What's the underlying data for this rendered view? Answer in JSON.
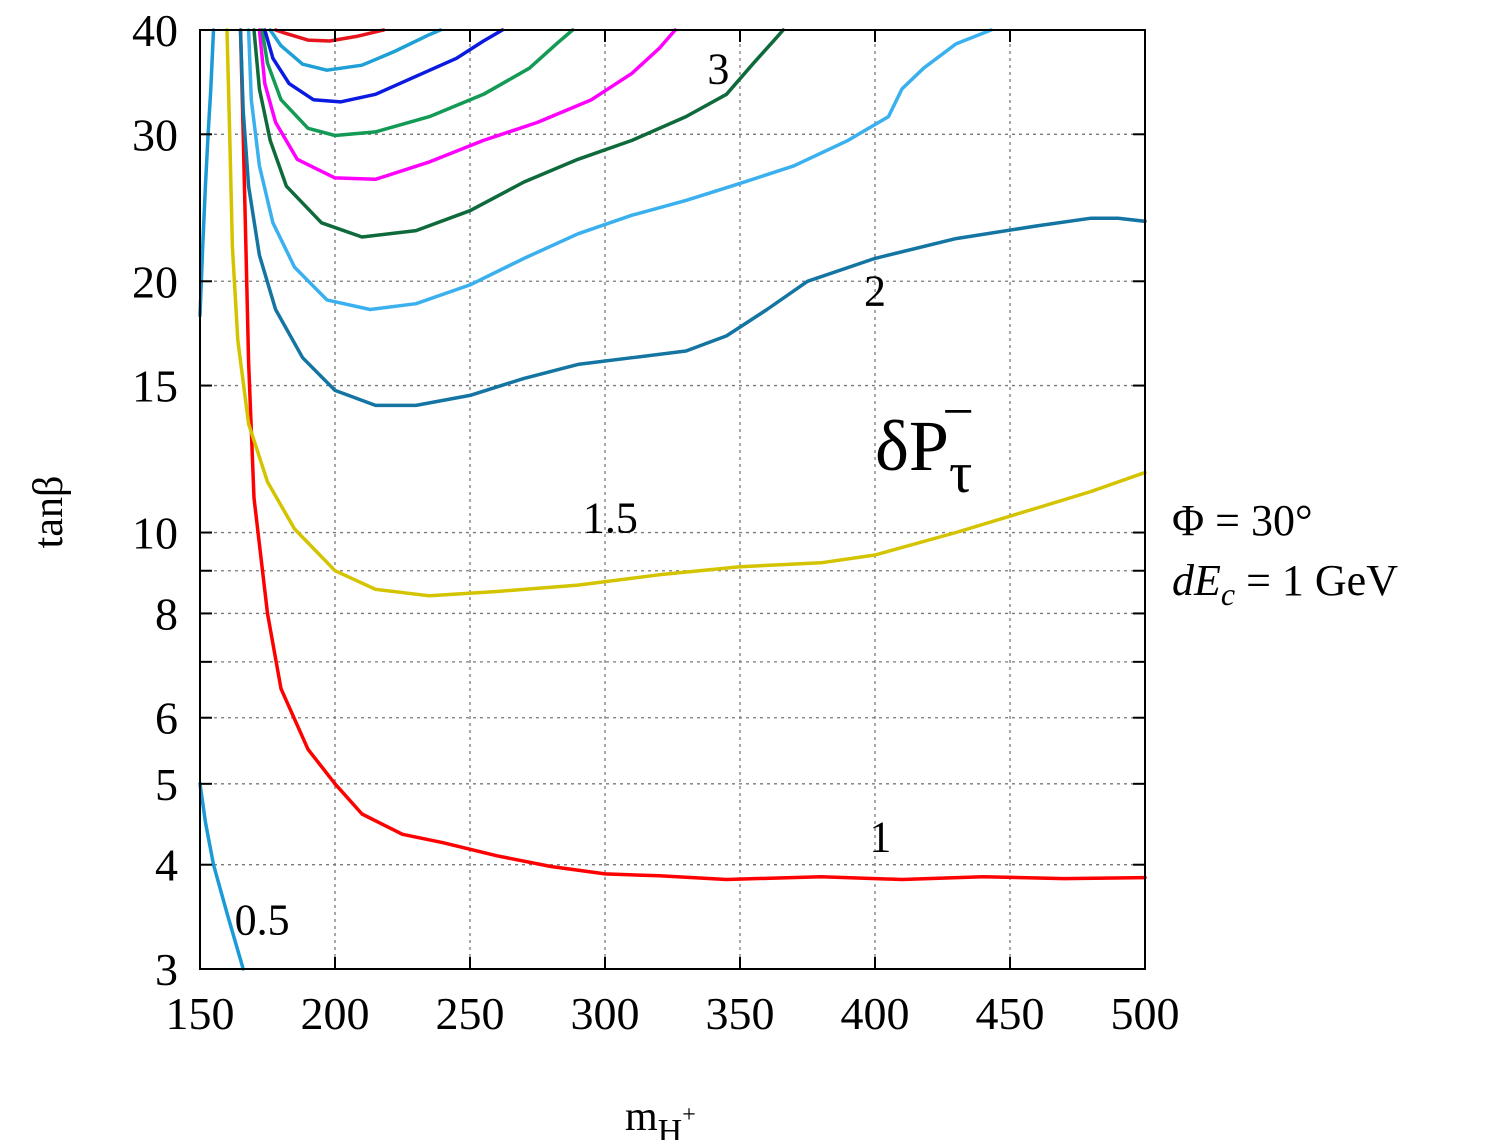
{
  "chart_data": {
    "type": "line",
    "title": "δP",
    "title_subscript": "τ",
    "title_superscript": "−",
    "xlabel": "m",
    "xlabel_subscript": "H",
    "xlabel_sup": "+",
    "ylabel": "tanβ",
    "xlim": [
      150,
      500
    ],
    "ylim": [
      3,
      40
    ],
    "yscale": "log",
    "grid": true,
    "x_ticks": [
      150,
      200,
      250,
      300,
      350,
      400,
      450,
      500
    ],
    "y_ticks": [
      3,
      4,
      5,
      6,
      8,
      10,
      15,
      20,
      30,
      40
    ],
    "y_grid_extra": [
      7,
      9
    ],
    "params": {
      "line1": "Φ = 30°",
      "line2_sym": "dE",
      "line2_sub": "c",
      "line2_rest": " = 1 GeV"
    },
    "contour_labels": [
      {
        "text": "0.5",
        "x": 173,
        "y": 3.3
      },
      {
        "text": "1",
        "x": 402,
        "y": 4.15
      },
      {
        "text": "1.5",
        "x": 302,
        "y": 10.0
      },
      {
        "text": "2",
        "x": 400,
        "y": 18.7
      },
      {
        "text": "3",
        "x": 342,
        "y": 34.5
      }
    ],
    "series": [
      {
        "color": "#1a9ad6",
        "points": [
          [
            150,
            5.0
          ],
          [
            152,
            4.5
          ],
          [
            155,
            4.0
          ],
          [
            160,
            3.5
          ],
          [
            166,
            3.0
          ]
        ]
      },
      {
        "color": "#1a9ad6",
        "points": [
          [
            150,
            18.2
          ],
          [
            151,
            22
          ],
          [
            152,
            26
          ],
          [
            153,
            30
          ],
          [
            154,
            34
          ],
          [
            155,
            40
          ]
        ]
      },
      {
        "color": "#ff0000",
        "points": [
          [
            165,
            40
          ],
          [
            166,
            30
          ],
          [
            167,
            22
          ],
          [
            168,
            16
          ],
          [
            170,
            11
          ],
          [
            175,
            8
          ],
          [
            180,
            6.5
          ],
          [
            190,
            5.5
          ],
          [
            200,
            5.0
          ],
          [
            210,
            4.6
          ],
          [
            225,
            4.35
          ],
          [
            240,
            4.25
          ],
          [
            260,
            4.1
          ],
          [
            280,
            3.98
          ],
          [
            300,
            3.9
          ],
          [
            320,
            3.88
          ],
          [
            345,
            3.84
          ],
          [
            380,
            3.87
          ],
          [
            410,
            3.84
          ],
          [
            440,
            3.87
          ],
          [
            470,
            3.85
          ],
          [
            500,
            3.86
          ]
        ]
      },
      {
        "color": "#d4c400",
        "points": [
          [
            160,
            40
          ],
          [
            161,
            30
          ],
          [
            162,
            22
          ],
          [
            164,
            17
          ],
          [
            168,
            13.5
          ],
          [
            175,
            11.5
          ],
          [
            185,
            10.1
          ],
          [
            200,
            9.0
          ],
          [
            215,
            8.55
          ],
          [
            235,
            8.4
          ],
          [
            260,
            8.5
          ],
          [
            290,
            8.65
          ],
          [
            320,
            8.9
          ],
          [
            350,
            9.1
          ],
          [
            380,
            9.2
          ],
          [
            400,
            9.4
          ],
          [
            430,
            10.0
          ],
          [
            460,
            10.7
          ],
          [
            480,
            11.2
          ],
          [
            500,
            11.8
          ]
        ]
      },
      {
        "color": "#1475a3",
        "points": [
          [
            165,
            40
          ],
          [
            166,
            32
          ],
          [
            168,
            26
          ],
          [
            172,
            21.5
          ],
          [
            178,
            18.5
          ],
          [
            188,
            16.2
          ],
          [
            200,
            14.8
          ],
          [
            215,
            14.2
          ],
          [
            230,
            14.2
          ],
          [
            250,
            14.6
          ],
          [
            270,
            15.3
          ],
          [
            290,
            15.9
          ],
          [
            310,
            16.2
          ],
          [
            330,
            16.5
          ],
          [
            345,
            17.2
          ],
          [
            360,
            18.5
          ],
          [
            375,
            20.0
          ],
          [
            400,
            21.3
          ],
          [
            430,
            22.5
          ],
          [
            460,
            23.3
          ],
          [
            480,
            23.8
          ],
          [
            490,
            23.8
          ],
          [
            500,
            23.6
          ]
        ]
      },
      {
        "color": "#3bb0ef",
        "points": [
          [
            168,
            40
          ],
          [
            169,
            33
          ],
          [
            172,
            27.5
          ],
          [
            177,
            23.5
          ],
          [
            185,
            20.8
          ],
          [
            197,
            19.0
          ],
          [
            213,
            18.5
          ],
          [
            230,
            18.8
          ],
          [
            250,
            19.8
          ],
          [
            270,
            21.3
          ],
          [
            290,
            22.8
          ],
          [
            310,
            24.0
          ],
          [
            330,
            25.0
          ],
          [
            350,
            26.2
          ],
          [
            370,
            27.5
          ],
          [
            390,
            29.5
          ],
          [
            405,
            31.5
          ],
          [
            410,
            34.0
          ],
          [
            418,
            36.0
          ],
          [
            430,
            38.5
          ],
          [
            443,
            40.0
          ]
        ]
      },
      {
        "color": "#0e6a3a",
        "points": [
          [
            170,
            40
          ],
          [
            172,
            34
          ],
          [
            176,
            29.5
          ],
          [
            182,
            26.0
          ],
          [
            195,
            23.5
          ],
          [
            210,
            22.6
          ],
          [
            230,
            23.0
          ],
          [
            250,
            24.3
          ],
          [
            270,
            26.3
          ],
          [
            290,
            28.0
          ],
          [
            310,
            29.5
          ],
          [
            330,
            31.5
          ],
          [
            345,
            33.5
          ],
          [
            355,
            36.5
          ],
          [
            363,
            39.0
          ],
          [
            366,
            40.0
          ]
        ]
      },
      {
        "color": "#ff00ff",
        "points": [
          [
            172,
            40
          ],
          [
            174,
            34.5
          ],
          [
            178,
            31.0
          ],
          [
            186,
            28.0
          ],
          [
            200,
            26.6
          ],
          [
            215,
            26.5
          ],
          [
            235,
            27.8
          ],
          [
            255,
            29.5
          ],
          [
            275,
            31.0
          ],
          [
            295,
            33.0
          ],
          [
            310,
            35.5
          ],
          [
            320,
            38.0
          ],
          [
            326,
            40.0
          ]
        ]
      },
      {
        "color": "#139a55",
        "points": [
          [
            173,
            40
          ],
          [
            175,
            36.5
          ],
          [
            180,
            33.0
          ],
          [
            190,
            30.5
          ],
          [
            200,
            29.9
          ],
          [
            215,
            30.2
          ],
          [
            235,
            31.5
          ],
          [
            255,
            33.5
          ],
          [
            272,
            36.0
          ],
          [
            282,
            38.5
          ],
          [
            288,
            40.0
          ]
        ]
      },
      {
        "color": "#0b1ae0",
        "points": [
          [
            174,
            40
          ],
          [
            177,
            37.0
          ],
          [
            183,
            34.5
          ],
          [
            192,
            33.0
          ],
          [
            202,
            32.8
          ],
          [
            215,
            33.5
          ],
          [
            230,
            35.2
          ],
          [
            245,
            37.0
          ],
          [
            255,
            38.8
          ],
          [
            262,
            40.0
          ]
        ]
      },
      {
        "color": "#1e9fd6",
        "points": [
          [
            176,
            40
          ],
          [
            180,
            38.3
          ],
          [
            188,
            36.4
          ],
          [
            197,
            35.8
          ],
          [
            210,
            36.3
          ],
          [
            222,
            37.7
          ],
          [
            235,
            39.5
          ],
          [
            239,
            40.0
          ]
        ]
      },
      {
        "color": "#e6151d",
        "points": [
          [
            178,
            40
          ],
          [
            182,
            39.6
          ],
          [
            190,
            38.9
          ],
          [
            198,
            38.8
          ],
          [
            208,
            39.3
          ],
          [
            218,
            40.0
          ]
        ]
      }
    ]
  }
}
